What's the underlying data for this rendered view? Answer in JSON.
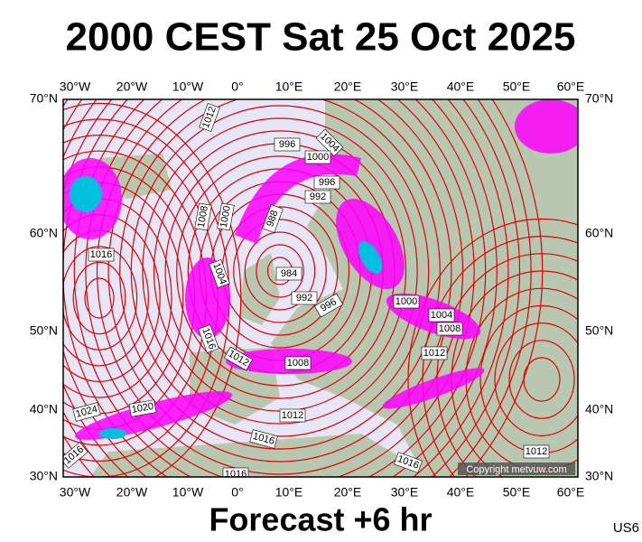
{
  "header": {
    "title": "2000 CEST Sat 25 Oct 2025"
  },
  "footer": {
    "subtitle": "Forecast +6 hr",
    "code": "US6"
  },
  "map": {
    "lon_labels": [
      "30°W",
      "20°W",
      "10°W",
      "0°",
      "10°E",
      "20°E",
      "30°E",
      "40°E",
      "50°E",
      "60°E"
    ],
    "lat_labels": [
      "70°N",
      "60°N",
      "50°N",
      "40°N",
      "30°N"
    ],
    "isobar_labels": [
      "1012",
      "996",
      "1004",
      "1000",
      "996",
      "992",
      "1008",
      "1000",
      "988",
      "1016",
      "1004",
      "984",
      "992",
      "996",
      "1000",
      "1004",
      "1008",
      "1016",
      "1012",
      "1008",
      "1012",
      "1020",
      "1024",
      "1012",
      "1016",
      "1016",
      "1016",
      "1016",
      "1012"
    ],
    "copyright": "Copyright metvuw.com"
  }
}
